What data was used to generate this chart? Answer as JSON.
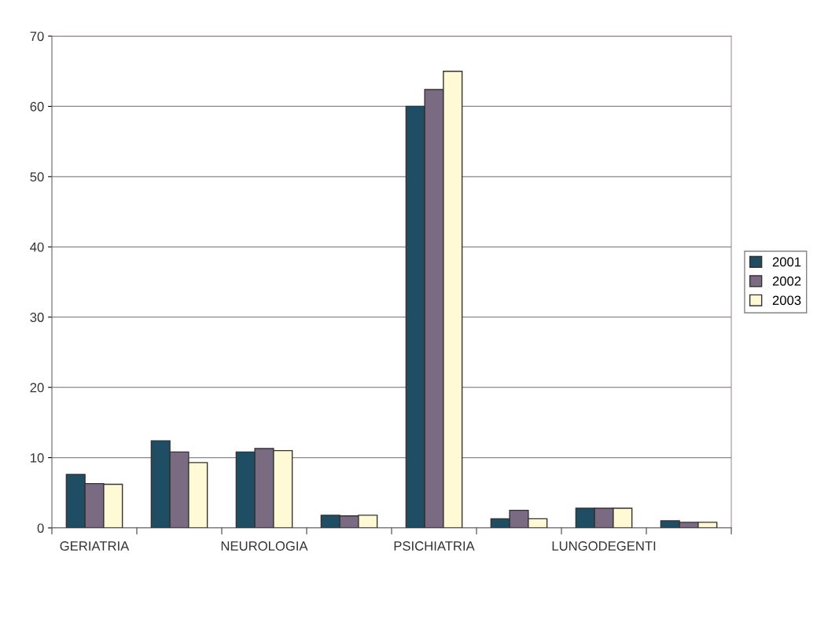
{
  "chart_data": {
    "type": "bar",
    "categories": [
      "GERIATRIA",
      null,
      "NEUROLOGIA",
      null,
      "PSICHIATRIA",
      null,
      "LUNGODEGENTI",
      null
    ],
    "series": [
      {
        "name": "2001",
        "color": "#1f4d63",
        "values": [
          7.6,
          12.4,
          10.8,
          1.8,
          60.0,
          1.3,
          2.8,
          1.0
        ]
      },
      {
        "name": "2002",
        "color": "#7a6b82",
        "values": [
          6.3,
          10.8,
          11.3,
          1.7,
          62.4,
          2.5,
          2.8,
          0.8
        ]
      },
      {
        "name": "2003",
        "color": "#fff9d6",
        "values": [
          6.2,
          9.3,
          11.0,
          1.8,
          65.0,
          1.3,
          2.8,
          0.8
        ]
      }
    ],
    "ylim": [
      0,
      70
    ],
    "yticks": [
      0,
      10,
      20,
      30,
      40,
      50,
      60,
      70
    ],
    "grid": "y",
    "legend": "right"
  }
}
